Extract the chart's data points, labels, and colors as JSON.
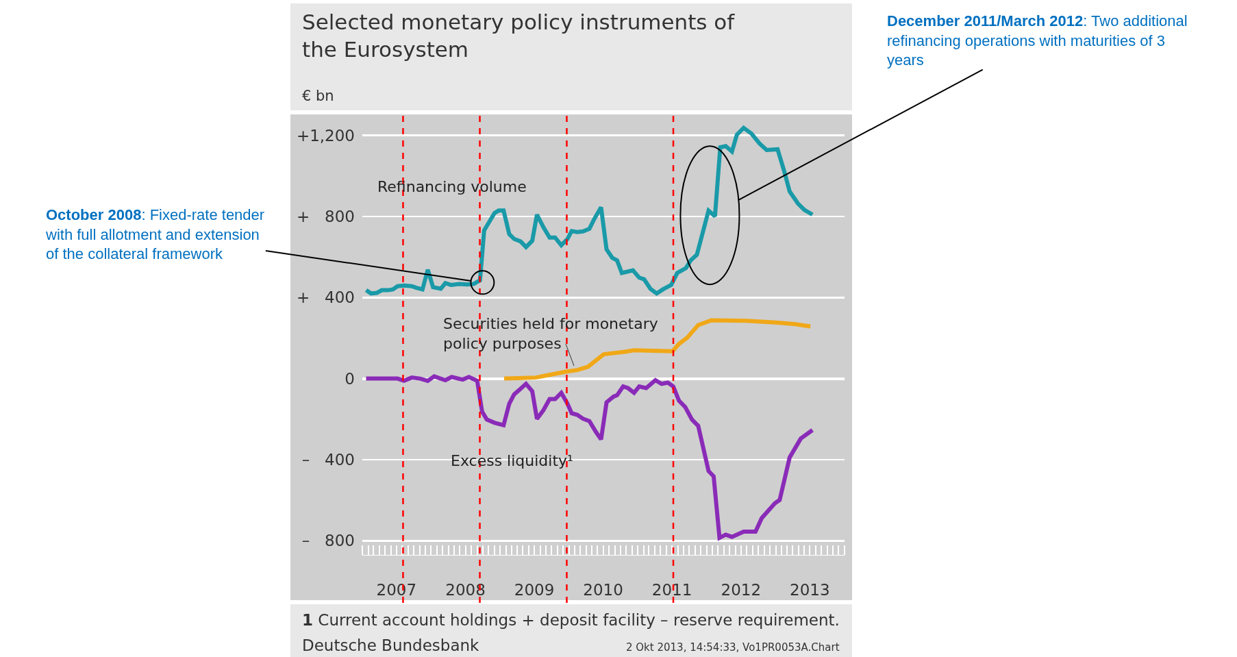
{
  "chart_data": {
    "type": "line",
    "title": "Selected monetary policy instruments of the Eurosystem",
    "subtitle": "€ bn",
    "xlim": [
      "2007-01-01",
      "2014-01-01"
    ],
    "xticks": [
      {
        "value": "2007-07-01",
        "label": "2007"
      },
      {
        "value": "2008-07-01",
        "label": "2008"
      },
      {
        "value": "2009-07-01",
        "label": "2009"
      },
      {
        "value": "2010-07-01",
        "label": "2010"
      },
      {
        "value": "2011-07-01",
        "label": "2011"
      },
      {
        "value": "2012-07-01",
        "label": "2012"
      },
      {
        "value": "2013-07-01",
        "label": "2013"
      }
    ],
    "ylim": [
      -870,
      1300
    ],
    "yticks": [
      {
        "value": 1200,
        "label": "+1,200"
      },
      {
        "value": 800,
        "label": "+   800"
      },
      {
        "value": 400,
        "label": "+   400"
      },
      0,
      {
        "value": -400,
        "label": "–   400"
      },
      {
        "value": -800,
        "label": "–   800"
      }
    ],
    "grid": "y",
    "legend": false,
    "marker": "none",
    "line_style": "solid",
    "ref_lines": [
      {
        "axis": "x",
        "value": "2007-08-05",
        "color": "#ff0000",
        "line_style": "dashed"
      },
      {
        "axis": "x",
        "value": "2008-09-15",
        "color": "#ff0000",
        "line_style": "dashed"
      },
      {
        "axis": "x",
        "value": "2009-12-20",
        "color": "#ff0000",
        "line_style": "dashed"
      },
      {
        "axis": "x",
        "value": "2011-07-08",
        "color": "#ff0000",
        "line_style": "dashed"
      }
    ],
    "annotations": [
      {
        "text": "October 2008: Fixed-rate tender with full allotment and extension of the collateral framework",
        "x": "2008-09-29",
        "y": 474
      },
      {
        "text": "December 2011/March 2012: Two additional refinancing operations with maturities of 3 years",
        "x": "2012-01-18",
        "y": 806
      },
      "1 Current account holdings + deposit facility – reserve requirement.",
      "Deutsche Bundesbank",
      "2 Okt 2013, 14:54:33, Vo1PR0053A.Chart"
    ],
    "series": [
      {
        "name": "Refinancing volume",
        "color": "#1a9aa8",
        "x": [
          "2007-01-21",
          "2007-02-16",
          "2007-03-19",
          "2007-04-14",
          "2007-05-17",
          "2007-06-12",
          "2007-07-07",
          "2007-08-10",
          "2007-09-20",
          "2007-10-15",
          "2007-11-16",
          "2007-12-14",
          "2008-01-11",
          "2008-02-21",
          "2008-03-16",
          "2008-04-15",
          "2008-05-29",
          "2008-07-12",
          "2008-08-14",
          "2008-09-16",
          "2008-10-08",
          "2008-11-07",
          "2008-12-02",
          "2008-12-24",
          "2009-01-19",
          "2009-02-18",
          "2009-03-16",
          "2009-04-19",
          "2009-05-18",
          "2009-06-20",
          "2009-07-15",
          "2009-08-18",
          "2009-09-20",
          "2009-10-19",
          "2009-11-21",
          "2009-12-24",
          "2010-01-15",
          "2010-02-14",
          "2010-03-16",
          "2010-04-19",
          "2010-05-14",
          "2010-06-20",
          "2010-07-19",
          "2010-08-18",
          "2010-09-13",
          "2010-10-08",
          "2010-12-06",
          "2011-01-08",
          "2011-02-03",
          "2011-03-09",
          "2011-04-11",
          "2011-05-14",
          "2011-06-27",
          "2011-07-29",
          "2011-09-13",
          "2011-10-08",
          "2011-11-10",
          "2012-01-11",
          "2012-02-14",
          "2012-03-13",
          "2012-04-11",
          "2012-05-14",
          "2012-06-09",
          "2012-07-15",
          "2012-08-25",
          "2012-10-08",
          "2012-11-14",
          "2013-01-11",
          "2013-02-14",
          "2013-03-16",
          "2013-04-29",
          "2013-06-02",
          "2013-07-15"
        ],
        "values": [
          436,
          420,
          423,
          436,
          436,
          440,
          456,
          459,
          456,
          448,
          440,
          537,
          451,
          443,
          471,
          462,
          467,
          464,
          467,
          485,
          731,
          778,
          817,
          829,
          829,
          713,
          689,
          677,
          649,
          680,
          809,
          747,
          696,
          696,
          658,
          689,
          728,
          723,
          726,
          739,
          786,
          845,
          638,
          596,
          583,
          521,
          534,
          498,
          490,
          443,
          420,
          440,
          462,
          521,
          545,
          583,
          611,
          829,
          801,
          1141,
          1147,
          1120,
          1203,
          1237,
          1209,
          1159,
          1128,
          1131,
          1027,
          923,
          864,
          832,
          809
        ]
      },
      {
        "name": "Securities held for monetary policy purposes",
        "color": "#f0a818",
        "x": [
          "2009-01-22",
          "2009-07-08",
          "2009-09-23",
          "2009-12-16",
          "2010-02-14",
          "2010-04-11",
          "2010-05-25",
          "2010-07-04",
          "2010-10-24",
          "2010-12-12",
          "2011-07-04",
          "2011-08-07",
          "2011-09-20",
          "2011-11-17",
          "2012-01-26",
          "2012-07-30",
          "2013-01-01",
          "2013-04-11",
          "2013-07-04"
        ],
        "values": [
          0,
          5,
          19,
          34,
          42,
          58,
          90,
          120,
          132,
          140,
          135,
          171,
          202,
          264,
          288,
          285,
          277,
          269,
          257
        ]
      },
      {
        "name": "Excess liquidity¹",
        "color": "#8a2bb8",
        "x": [
          "2007-01-21",
          "2007-07-07",
          "2007-08-10",
          "2007-09-20",
          "2007-11-03",
          "2007-12-14",
          "2008-01-17",
          "2008-03-16",
          "2008-04-19",
          "2008-06-16",
          "2008-07-19",
          "2008-09-01",
          "2008-09-27",
          "2008-10-22",
          "2008-12-02",
          "2009-01-19",
          "2009-02-18",
          "2009-03-16",
          "2009-04-19",
          "2009-05-18",
          "2009-06-20",
          "2009-07-15",
          "2009-08-18",
          "2009-09-20",
          "2009-10-19",
          "2009-11-21",
          "2009-12-24",
          "2010-01-15",
          "2010-02-14",
          "2010-03-16",
          "2010-04-19",
          "2010-05-25",
          "2010-06-20",
          "2010-07-19",
          "2010-08-25",
          "2010-09-13",
          "2010-10-15",
          "2010-11-10",
          "2010-12-12",
          "2011-01-08",
          "2011-02-14",
          "2011-04-04",
          "2011-05-07",
          "2011-06-09",
          "2011-07-08",
          "2011-08-07",
          "2011-09-09",
          "2011-10-15",
          "2011-11-17",
          "2012-01-11",
          "2012-02-07",
          "2012-03-09",
          "2012-04-11",
          "2012-05-14",
          "2012-07-15",
          "2012-09-16",
          "2012-10-19",
          "2012-12-28",
          "2013-01-22",
          "2013-03-16",
          "2013-05-14",
          "2013-07-15"
        ],
        "values": [
          0,
          0,
          -11,
          5,
          0,
          -11,
          11,
          -8,
          8,
          -5,
          8,
          -11,
          -163,
          -202,
          -218,
          -230,
          -124,
          -78,
          -50,
          -26,
          -62,
          -199,
          -156,
          -101,
          -101,
          -70,
          -124,
          -171,
          -179,
          -198,
          -210,
          -265,
          -300,
          -117,
          -89,
          -82,
          -39,
          -47,
          -70,
          -39,
          -47,
          -8,
          -26,
          -20,
          -39,
          -109,
          -140,
          -202,
          -233,
          -456,
          -482,
          -786,
          -770,
          -781,
          -755,
          -755,
          -688,
          -615,
          -599,
          -389,
          -296,
          -254
        ]
      }
    ]
  }
}
